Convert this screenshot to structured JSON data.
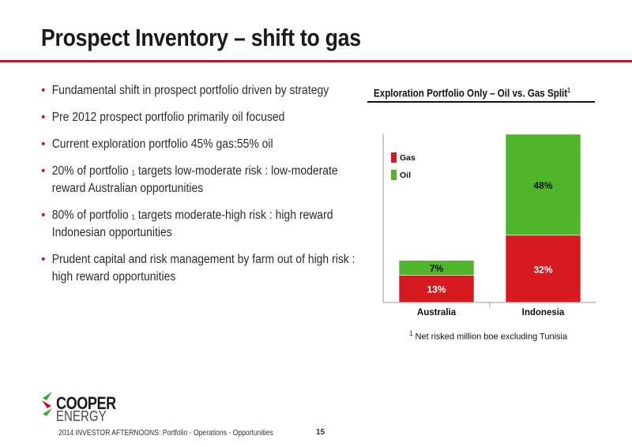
{
  "slide": {
    "title": "Prospect Inventory – shift to gas",
    "bullets": [
      {
        "text": "Fundamental shift in prospect  portfolio driven by strategy",
        "sup": "",
        "rest": ""
      },
      {
        "text": "Pre 2012  prospect portfolio primarily oil focused",
        "sup": "",
        "rest": ""
      },
      {
        "text": "Current exploration portfolio 45% gas:55% oil",
        "sup": "",
        "rest": ""
      },
      {
        "text": "20%  of portfolio ",
        "sup": "1",
        "rest": " targets low-moderate risk : low-moderate reward Australian opportunities"
      },
      {
        "text": "80%  of portfolio ",
        "sup": "1",
        "rest": " targets moderate-high risk : high reward Indonesian opportunities"
      },
      {
        "text": "Prudent capital and risk management by farm out of high risk : high reward opportunities",
        "sup": "",
        "rest": ""
      }
    ],
    "chart_title": "Exploration Portfolio  Only – Oil vs. Gas Split",
    "chart_title_sup": "1",
    "footnote_sup": "1",
    "footnote": " Net risked million boe excluding Tunisia",
    "logo_line1": "COOPER",
    "logo_line2": "ENERGY",
    "footer": "2014 INVESTOR AFTERNOONS: Portfolio - Operations - Opportunities",
    "page_number": "15"
  },
  "colors": {
    "accent_red": "#c8102e",
    "gas": "#d71920",
    "oil": "#4fb52b",
    "logo_green": "#3aaa35"
  },
  "chart_data": {
    "type": "bar",
    "stacked": true,
    "categories": [
      "Australia",
      "Indonesia"
    ],
    "series": [
      {
        "name": "Gas",
        "values": [
          13,
          32
        ],
        "labels": [
          "13%",
          "32%"
        ],
        "color": "#d71920"
      },
      {
        "name": "Oil",
        "values": [
          7,
          48
        ],
        "labels": [
          "7%",
          "48%"
        ],
        "color": "#4fb52b"
      }
    ],
    "ylim": [
      0,
      80
    ],
    "legend": "top-left",
    "grid": false
  }
}
